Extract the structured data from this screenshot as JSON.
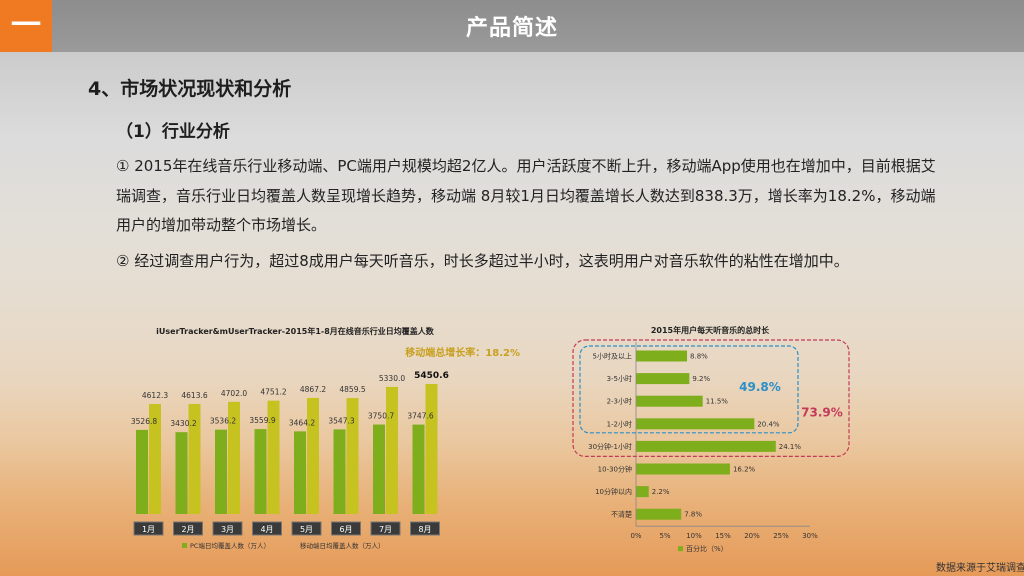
{
  "header": {
    "badge": "一",
    "title": "产品简述"
  },
  "section": {
    "heading": "4、市场状况现状和分析",
    "subheading": "（1）行业分析",
    "paragraphs": [
      "① 2015年在线音乐行业移动端、PC端用户规模均超2亿人。用户活跃度不断上升，移动端App使用也在增加中，目前根据艾瑞调查，音乐行业日均覆盖人数呈现增长趋势，移动端 8月较1月日均覆盖增长人数达到838.3万，增长率为18.2%，移动端用户的增加带动整个市场增长。",
      "② 经过调查用户行为，超过8成用户每天听音乐，时长多超过半小时，这表明用户对音乐软件的粘性在增加中。"
    ]
  },
  "source_note": "数据来源于艾瑞调查",
  "colors": {
    "pc": "#7fae1c",
    "mobile": "#c6c220",
    "accent_orange": "#f07a21",
    "gold": "#c8a020",
    "blue": "#2b8fc8",
    "pink": "#c43a5a"
  },
  "chart_data": [
    {
      "type": "bar",
      "title": "iUserTracker&mUserTracker-2015年1-8月在线音乐行业日均覆盖人数",
      "annotation": "移动端总增长率：18.2%",
      "categories": [
        "1月",
        "2月",
        "3月",
        "4月",
        "5月",
        "6月",
        "7月",
        "8月"
      ],
      "series": [
        {
          "name": "PC端日均覆盖人数（万人）",
          "values": [
            3526.8,
            3430.2,
            3536.2,
            3559.9,
            3464.2,
            3547.3,
            3750.7,
            3747.6
          ]
        },
        {
          "name": "移动端日均覆盖人数（万人）",
          "values": [
            4612.3,
            4613.6,
            4702.0,
            4751.2,
            4867.2,
            4859.5,
            5330.0,
            5450.6
          ]
        }
      ],
      "value_labels": {
        "pc": [
          "3526.8",
          "3430.2",
          "3536.2",
          "3559.9",
          "3464.2",
          "3547.3",
          "3750.7",
          "3747.6"
        ],
        "mobile": [
          "4612.3",
          "4613.6",
          "4702.0",
          "4751.2",
          "4867.2",
          "4859.5",
          "5330.0",
          "5450.6"
        ]
      },
      "legend": "bottom"
    },
    {
      "type": "bar",
      "orientation": "horizontal",
      "title": "2015年用户每天听音乐的总时长",
      "categories": [
        "5小时及以上",
        "3-5小时",
        "2-3小时",
        "1-2小时",
        "30分钟-1小时",
        "10-30分钟",
        "10分钟以内",
        "不清楚"
      ],
      "series": [
        {
          "name": "百分比（%）",
          "values": [
            8.8,
            9.2,
            11.5,
            20.4,
            24.1,
            16.2,
            2.2,
            7.8
          ]
        }
      ],
      "value_labels": [
        "8.8%",
        "9.2%",
        "11.5%",
        "20.4%",
        "24.1%",
        "16.2%",
        "2.2%",
        "7.8%"
      ],
      "xlim": [
        0,
        30
      ],
      "x_ticks": [
        "0%",
        "5%",
        "10%",
        "15%",
        "20%",
        "25%",
        "30%"
      ],
      "groups": [
        {
          "label": "49.8%",
          "members": [
            "5小时及以上",
            "3-5小时",
            "2-3小时",
            "1-2小时"
          ]
        },
        {
          "label": "73.9%",
          "members": [
            "5小时及以上",
            "3-5小时",
            "2-3小时",
            "1-2小时",
            "30分钟-1小时"
          ]
        }
      ],
      "legend": "bottom"
    }
  ]
}
